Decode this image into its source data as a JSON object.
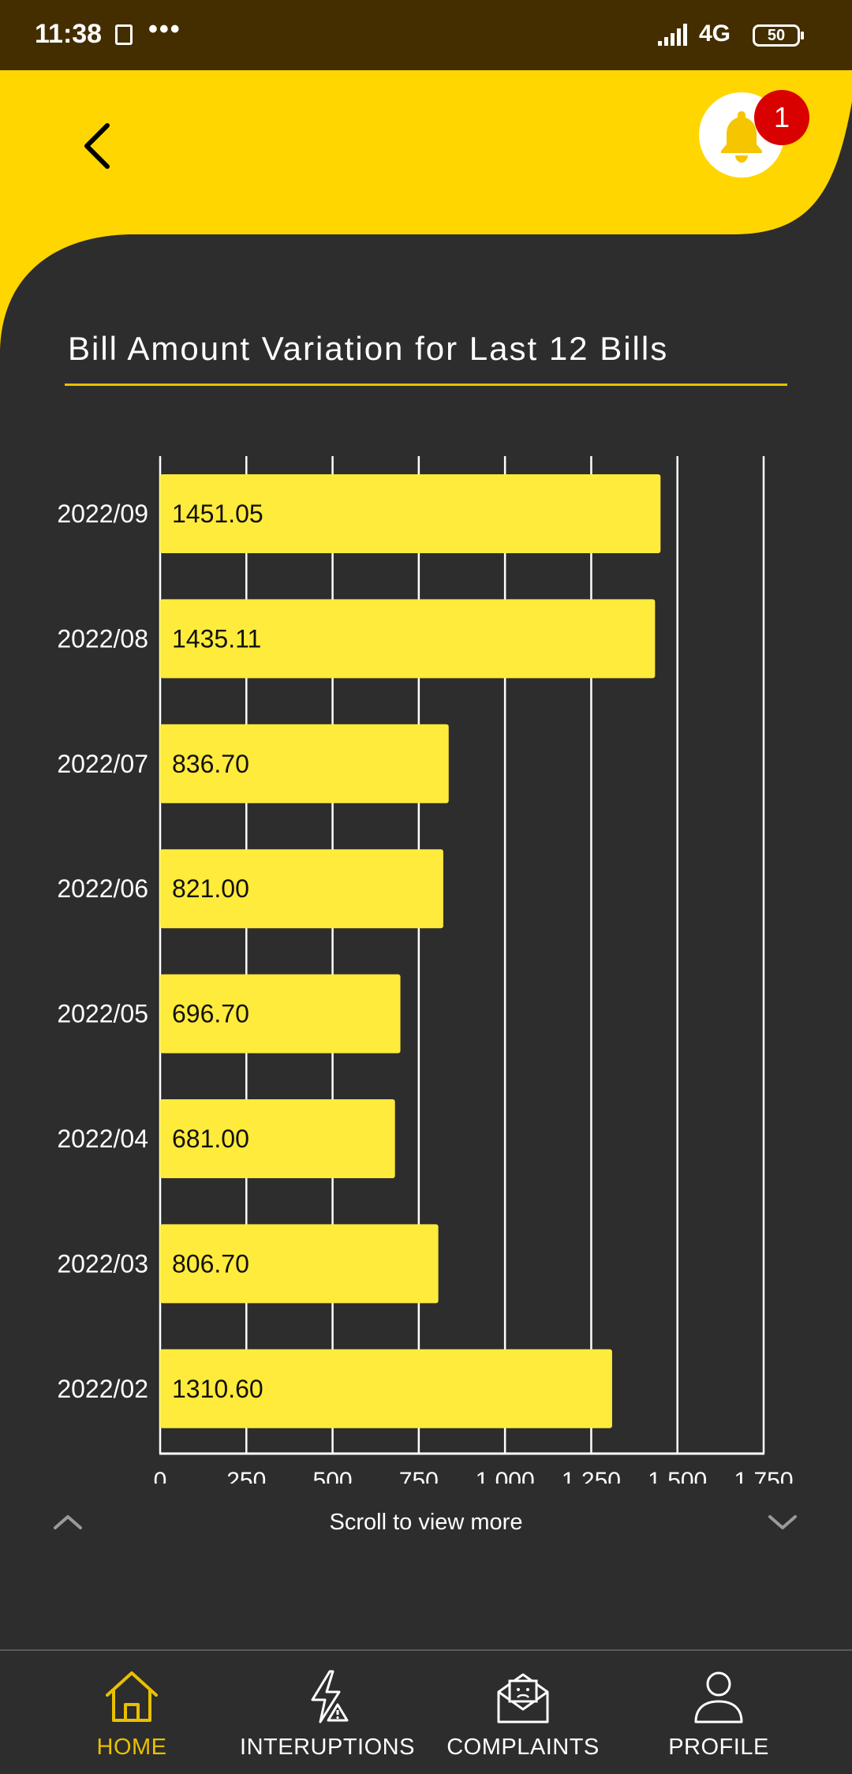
{
  "status_bar": {
    "time": "11:38",
    "dots": "•••",
    "network": "4G",
    "battery": "50"
  },
  "header": {
    "notification_count": "1",
    "accent_color": "#ffd600"
  },
  "title": "Bill Amount Variation for Last 12 Bills",
  "chart_data": {
    "type": "bar",
    "orientation": "horizontal",
    "title": "Bill Amount Variation for Last 12 Bills",
    "categories": [
      "2022/09",
      "2022/08",
      "2022/07",
      "2022/06",
      "2022/05",
      "2022/04",
      "2022/03",
      "2022/02"
    ],
    "values": [
      1451.05,
      1435.11,
      836.7,
      821.0,
      696.7,
      681.0,
      806.7,
      1310.6
    ],
    "value_labels": [
      "1451.05",
      "1435.11",
      "836.70",
      "821.00",
      "696.70",
      "681.00",
      "806.70",
      "1310.60"
    ],
    "x_ticks": [
      "0",
      "250",
      "500",
      "750",
      "1,000",
      "1,250",
      "1,500",
      "1,750"
    ],
    "xlim": [
      0,
      1750
    ],
    "grid": true,
    "bar_color": "#ffeb3b",
    "grid_color": "#ffffff"
  },
  "scroll_hint": "Scroll to view more",
  "nav": {
    "items": [
      {
        "label": "HOME",
        "active": true
      },
      {
        "label": "INTERUPTIONS",
        "active": false
      },
      {
        "label": "COMPLAINTS",
        "active": false
      },
      {
        "label": "PROFILE",
        "active": false
      }
    ],
    "active_color": "#e8c000"
  }
}
